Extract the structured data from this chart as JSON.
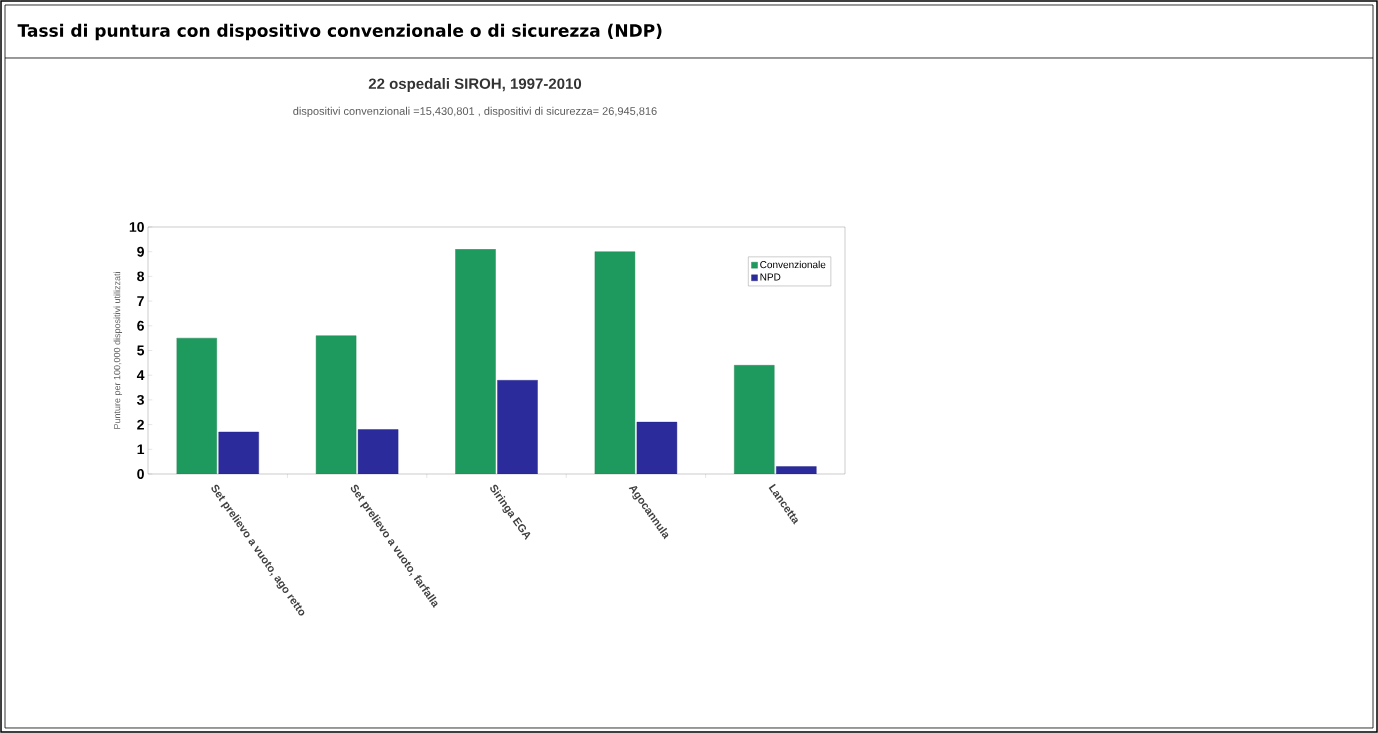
{
  "chart_data": {
    "type": "bar",
    "title": "Tassi di puntura con dispositivo convenzionale o di sicurezza (NDP)",
    "subtitle": "22 ospedali SIROH, 1997-2010",
    "annotations": [
      "dispositivi convenzionali =15,430,801 ,   dispositivi di sicurezza= 26,945,816"
    ],
    "ylabel": "Punture per 100,000 dispositivi utilizzati",
    "categories": [
      "Set prelievo a vuoto, ago retto",
      "Set prelievo a vuoto, farfalla",
      "Siringa EGA",
      "Agocannula",
      "Lancetta"
    ],
    "series": [
      {
        "name": "Convenzionale",
        "color": "#1f9a5e",
        "values": [
          5.5,
          5.6,
          9.1,
          9.0,
          4.4
        ]
      },
      {
        "name": "NPD",
        "color": "#2b2b9c",
        "values": [
          1.7,
          1.8,
          3.8,
          2.1,
          0.3
        ]
      }
    ],
    "ylim": [
      0,
      10
    ],
    "yticks": [
      0,
      1,
      2,
      3,
      4,
      5,
      6,
      7,
      8,
      9,
      10
    ],
    "legend": "top right",
    "grid": false
  }
}
